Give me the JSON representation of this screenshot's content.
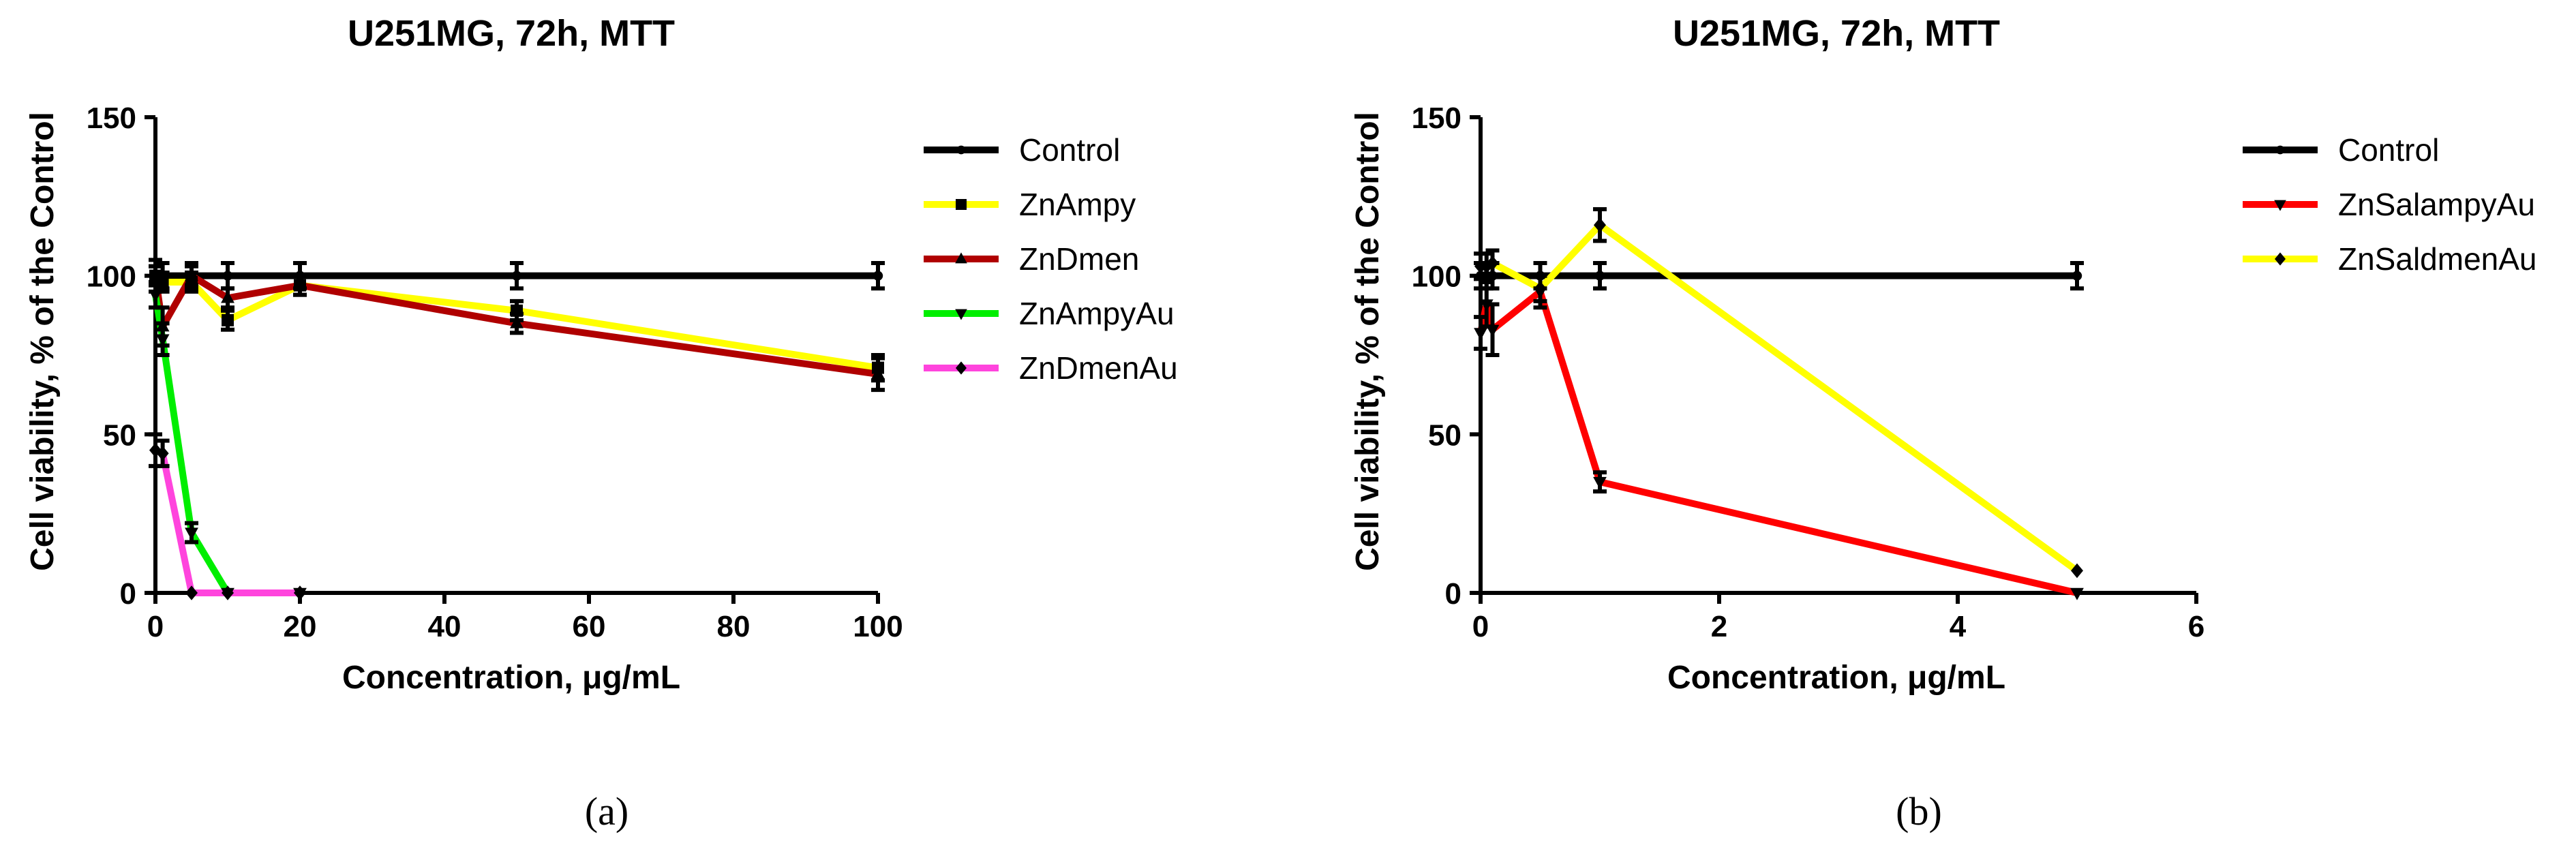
{
  "chart_data": [
    {
      "type": "line",
      "title": "U251MG, 72h, MTT",
      "xlabel": "Concentration, μg/mL",
      "ylabel": "Cell viability, % of the Control",
      "xlim": [
        0,
        100
      ],
      "ylim": [
        0,
        150
      ],
      "xticks": [
        0,
        20,
        40,
        60,
        80,
        100
      ],
      "yticks": [
        0,
        50,
        100,
        150
      ],
      "legend_position": "right",
      "panel_label": "(a)",
      "series": [
        {
          "name": "Control",
          "color": "#000000",
          "marker": "circle",
          "x": [
            0,
            1,
            5,
            10,
            20,
            50,
            100
          ],
          "y": [
            100,
            100,
            100,
            100,
            100,
            100,
            100
          ],
          "err": [
            5,
            4,
            4,
            4,
            4,
            4,
            4
          ]
        },
        {
          "name": "ZnAmpy",
          "color": "#ffff00",
          "marker": "square",
          "x": [
            0,
            1,
            5,
            10,
            20,
            50,
            100
          ],
          "y": [
            100,
            98,
            98,
            86,
            97,
            89,
            71
          ],
          "err": [
            3,
            3,
            3,
            3,
            3,
            3,
            4
          ]
        },
        {
          "name": "ZnDmen",
          "color": "#b00000",
          "marker": "triangle-up",
          "x": [
            0,
            1,
            5,
            10,
            20,
            50,
            100
          ],
          "y": [
            100,
            84,
            100,
            93,
            97,
            85,
            69
          ],
          "err": [
            3,
            6,
            3,
            3,
            3,
            3,
            5
          ]
        },
        {
          "name": "ZnAmpyAu",
          "color": "#00ee00",
          "marker": "triangle-down",
          "x": [
            0,
            1,
            5,
            10,
            20
          ],
          "y": [
            94,
            80,
            19,
            0,
            0
          ],
          "err": [
            4,
            5,
            3,
            1,
            1
          ]
        },
        {
          "name": "ZnDmenAu",
          "color": "#ff44dd",
          "marker": "diamond",
          "x": [
            0,
            1,
            5,
            10,
            20
          ],
          "y": [
            45,
            44,
            0,
            0,
            0
          ],
          "err": [
            5,
            4,
            1,
            1,
            1
          ]
        }
      ]
    },
    {
      "type": "line",
      "title": "U251MG, 72h, MTT",
      "xlabel": "Concentration, μg/mL",
      "ylabel": "Cell viability, % of the Control",
      "xlim": [
        0,
        6
      ],
      "ylim": [
        0,
        150
      ],
      "xticks": [
        0,
        2,
        4,
        6
      ],
      "yticks": [
        0,
        50,
        100,
        150
      ],
      "legend_position": "right",
      "panel_label": "(b)",
      "series": [
        {
          "name": "Control",
          "color": "#000000",
          "marker": "circle",
          "x": [
            0,
            0.05,
            0.1,
            0.5,
            1,
            5
          ],
          "y": [
            100,
            100,
            100,
            100,
            100,
            100
          ],
          "err": [
            4,
            4,
            4,
            4,
            4,
            4
          ]
        },
        {
          "name": "ZnSalampyAu",
          "color": "#ff0000",
          "marker": "triangle-down",
          "x": [
            0,
            0.05,
            0.1,
            0.5,
            1,
            5
          ],
          "y": [
            82,
            91,
            83,
            95,
            35,
            0
          ],
          "err": [
            5,
            7,
            8,
            5,
            3,
            1
          ]
        },
        {
          "name": "ZnSaldmenAu",
          "color": "#ffff00",
          "marker": "diamond",
          "x": [
            0,
            0.05,
            0.1,
            0.5,
            1,
            5
          ],
          "y": [
            103,
            103,
            104,
            96,
            116,
            7
          ],
          "err": [
            4,
            4,
            4,
            4,
            5,
            1
          ]
        }
      ]
    }
  ]
}
